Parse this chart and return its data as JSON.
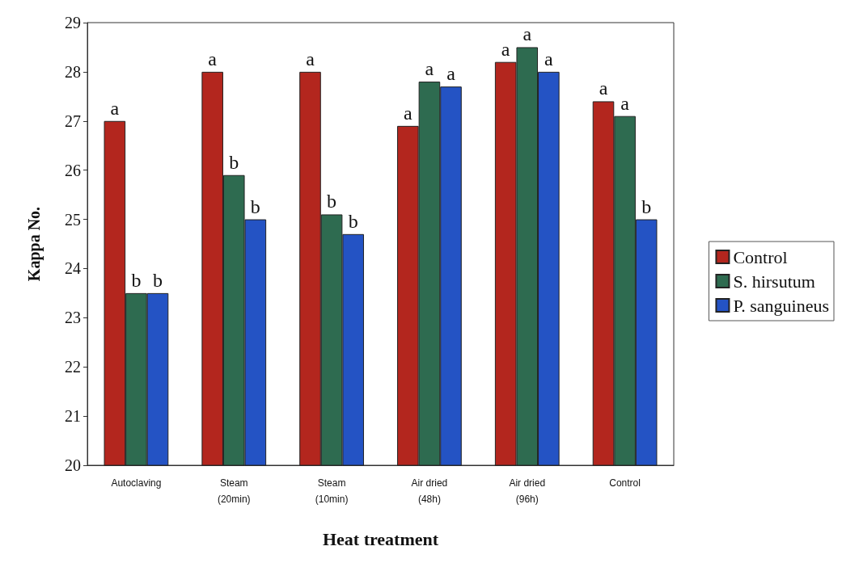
{
  "chart_data": {
    "type": "bar",
    "xlabel": "Heat treatment",
    "ylabel": "Kappa No.",
    "categories": [
      "Autoclaving",
      "Steam\n(20min)",
      "Steam\n(10min)",
      "Air dried\n(48h)",
      "Air dried\n(96h)",
      "Control"
    ],
    "series": [
      {
        "name": "Control",
        "color": "#b3261e",
        "values": [
          27,
          28,
          28,
          26.9,
          28.2,
          27.4
        ],
        "value_labels": [
          "a",
          "a",
          "a",
          "a",
          "a",
          "a"
        ]
      },
      {
        "name": "S. hirsutum",
        "color": "#2e6b50",
        "values": [
          23.5,
          25.9,
          25.1,
          27.8,
          28.5,
          27.1
        ],
        "value_labels": [
          "b",
          "b",
          "b",
          "a",
          "a",
          "a"
        ]
      },
      {
        "name": "P. sanguineus",
        "color": "#2453c4",
        "values": [
          23.5,
          25,
          24.7,
          27.7,
          28,
          25
        ],
        "value_labels": [
          "b",
          "b",
          "b",
          "a",
          "a",
          "b"
        ]
      }
    ],
    "ylim": [
      20,
      29
    ],
    "yticks": [
      20,
      21,
      22,
      23,
      24,
      25,
      26,
      27,
      28,
      29
    ],
    "grid": false,
    "legend": "right"
  }
}
